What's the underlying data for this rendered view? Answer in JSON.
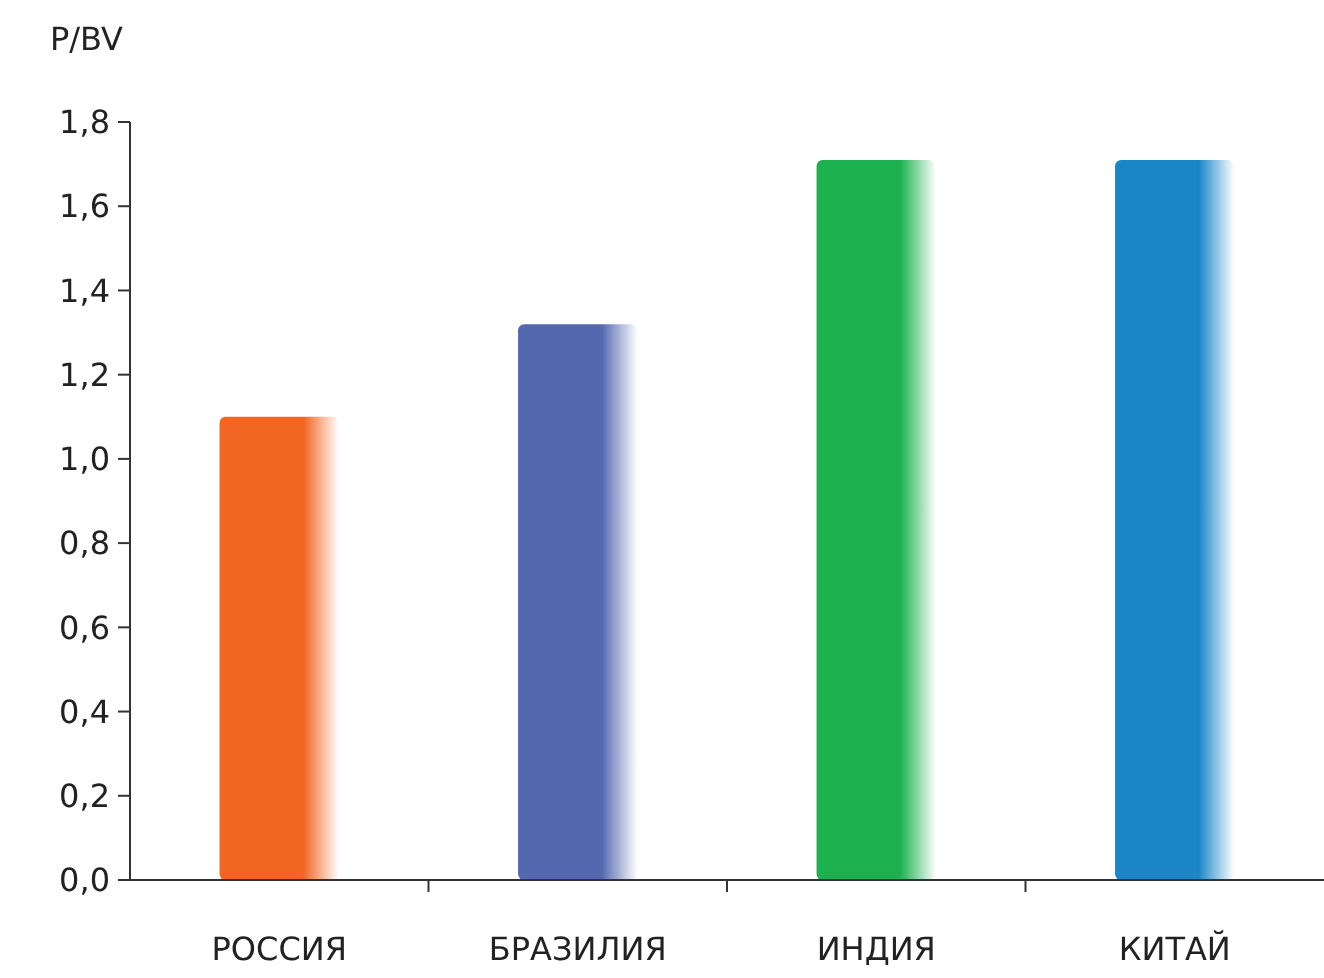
{
  "chart_data": {
    "type": "bar",
    "ylabel": "P/BV",
    "categories": [
      "РОССИЯ",
      "БРАЗИЛИЯ",
      "ИНДИЯ",
      "КИТАЙ"
    ],
    "values": [
      1.1,
      1.32,
      1.71,
      1.71
    ],
    "colors": [
      "#f26522",
      "#5468b0",
      "#1cb04f",
      "#1a86c8"
    ],
    "ylim": [
      0,
      1.8
    ],
    "yticks": [
      {
        "value": 0,
        "label": "0,0"
      },
      {
        "value": 0.2,
        "label": "0,2"
      },
      {
        "value": 0.4,
        "label": "0,4"
      },
      {
        "value": 0.6,
        "label": "0,6"
      },
      {
        "value": 0.8,
        "label": "0,8"
      },
      {
        "value": 1,
        "label": "1,0"
      },
      {
        "value": 1.2,
        "label": "1,2"
      },
      {
        "value": 1.4,
        "label": "1,4"
      },
      {
        "value": 1.6,
        "label": "1,6"
      },
      {
        "value": 1.8,
        "label": "1,8"
      }
    ],
    "grid": false
  }
}
